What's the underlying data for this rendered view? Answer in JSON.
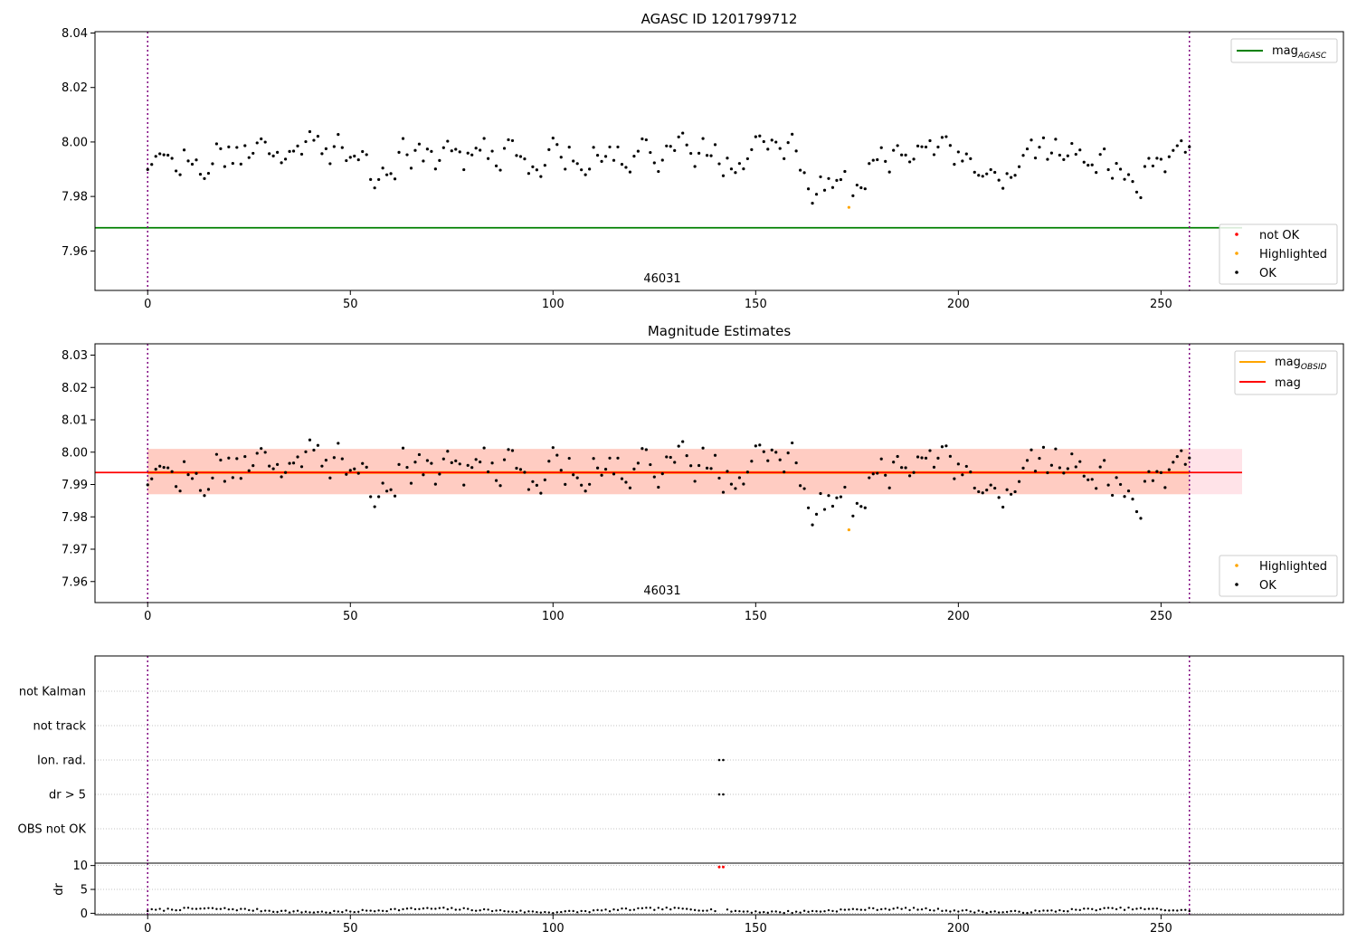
{
  "chart_data": [
    {
      "type": "scatter",
      "title": "AGASC ID 1201799712",
      "annotation": "46031",
      "xlim": [
        -13,
        295
      ],
      "ylim": [
        7.9455,
        8.0405
      ],
      "xticks": [
        0,
        50,
        100,
        150,
        200,
        250
      ],
      "yticks": [
        7.96,
        7.98,
        8.0,
        8.02,
        8.04
      ],
      "ytick_labels": [
        "7.96",
        "7.98",
        "8.00",
        "8.02",
        "8.04"
      ],
      "vlines": [
        0,
        257
      ],
      "hlines": [
        {
          "name": "mag_AGASC",
          "y": 7.9685,
          "color": "#008000",
          "x_from": -13,
          "x_to": 270
        }
      ],
      "legend_upper": [
        {
          "label": "mag",
          "sub": "AGASC",
          "color": "#008000",
          "kind": "line"
        }
      ],
      "legend_lower": [
        {
          "label": "not OK",
          "color": "#ff0000",
          "kind": "marker"
        },
        {
          "label": "Highlighted",
          "color": "#ffa500",
          "kind": "marker"
        },
        {
          "label": "OK",
          "color": "#000000",
          "kind": "marker"
        }
      ],
      "highlighted_points": [
        {
          "x": 173,
          "y": 7.976
        }
      ]
    },
    {
      "type": "scatter",
      "title": "Magnitude Estimates",
      "annotation": "46031",
      "xlim": [
        -13,
        295
      ],
      "ylim": [
        7.9535,
        8.0335
      ],
      "xticks": [
        0,
        50,
        100,
        150,
        200,
        250
      ],
      "yticks": [
        7.96,
        7.97,
        7.98,
        7.99,
        8.0,
        8.01,
        8.02,
        8.03
      ],
      "ytick_labels": [
        "7.96",
        "7.97",
        "7.98",
        "7.99",
        "8.00",
        "8.01",
        "8.02",
        "8.03"
      ],
      "vlines": [
        0,
        257
      ],
      "bands": [
        {
          "y0": 7.987,
          "y1": 8.001,
          "x0": 0,
          "x1": 270,
          "color": "#ffc0cb"
        },
        {
          "y0": 7.987,
          "y1": 8.001,
          "x0": 0,
          "x1": 257,
          "color": "#ffa07a"
        }
      ],
      "hlines": [
        {
          "name": "mag_OBSID",
          "y": 7.9937,
          "color": "#ffa500",
          "x_from": 0,
          "x_to": 257
        },
        {
          "name": "mag",
          "y": 7.9937,
          "color": "#ff0000",
          "x_from": -13,
          "x_to": 270
        }
      ],
      "legend_upper": [
        {
          "label": "mag",
          "sub": "OBSID",
          "color": "#ffa500",
          "kind": "line"
        },
        {
          "label": "mag",
          "sub": "",
          "color": "#ff0000",
          "kind": "line"
        }
      ],
      "legend_lower": [
        {
          "label": "Highlighted",
          "color": "#ffa500",
          "kind": "marker"
        },
        {
          "label": "OK",
          "color": "#000000",
          "kind": "marker"
        }
      ],
      "highlighted_points": [
        {
          "x": 173,
          "y": 7.976
        }
      ]
    },
    {
      "type": "scatter",
      "title": "",
      "xlim": [
        -13,
        295
      ],
      "category_labels": [
        "OBS not OK",
        "dr > 5",
        "Ion. rad.",
        "not track",
        "not Kalman"
      ],
      "vlines": [
        0,
        257
      ],
      "flag_points": [
        {
          "category": "Ion. rad.",
          "x": [
            141,
            142
          ]
        },
        {
          "category": "dr > 5",
          "x": [
            141,
            142
          ]
        }
      ]
    },
    {
      "type": "scatter",
      "title": "",
      "ylabel": "dr",
      "xlim": [
        -13,
        295
      ],
      "ylim": [
        -0.3,
        10.5
      ],
      "xticks": [
        0,
        50,
        100,
        150,
        200,
        250
      ],
      "yticks": [
        0,
        5,
        10
      ],
      "ytick_labels": [
        "0",
        "5",
        "10"
      ],
      "vlines": [
        0,
        257
      ],
      "outlier_points": [
        {
          "x": 141,
          "y": 9.7
        },
        {
          "x": 142,
          "y": 9.7
        }
      ]
    }
  ]
}
